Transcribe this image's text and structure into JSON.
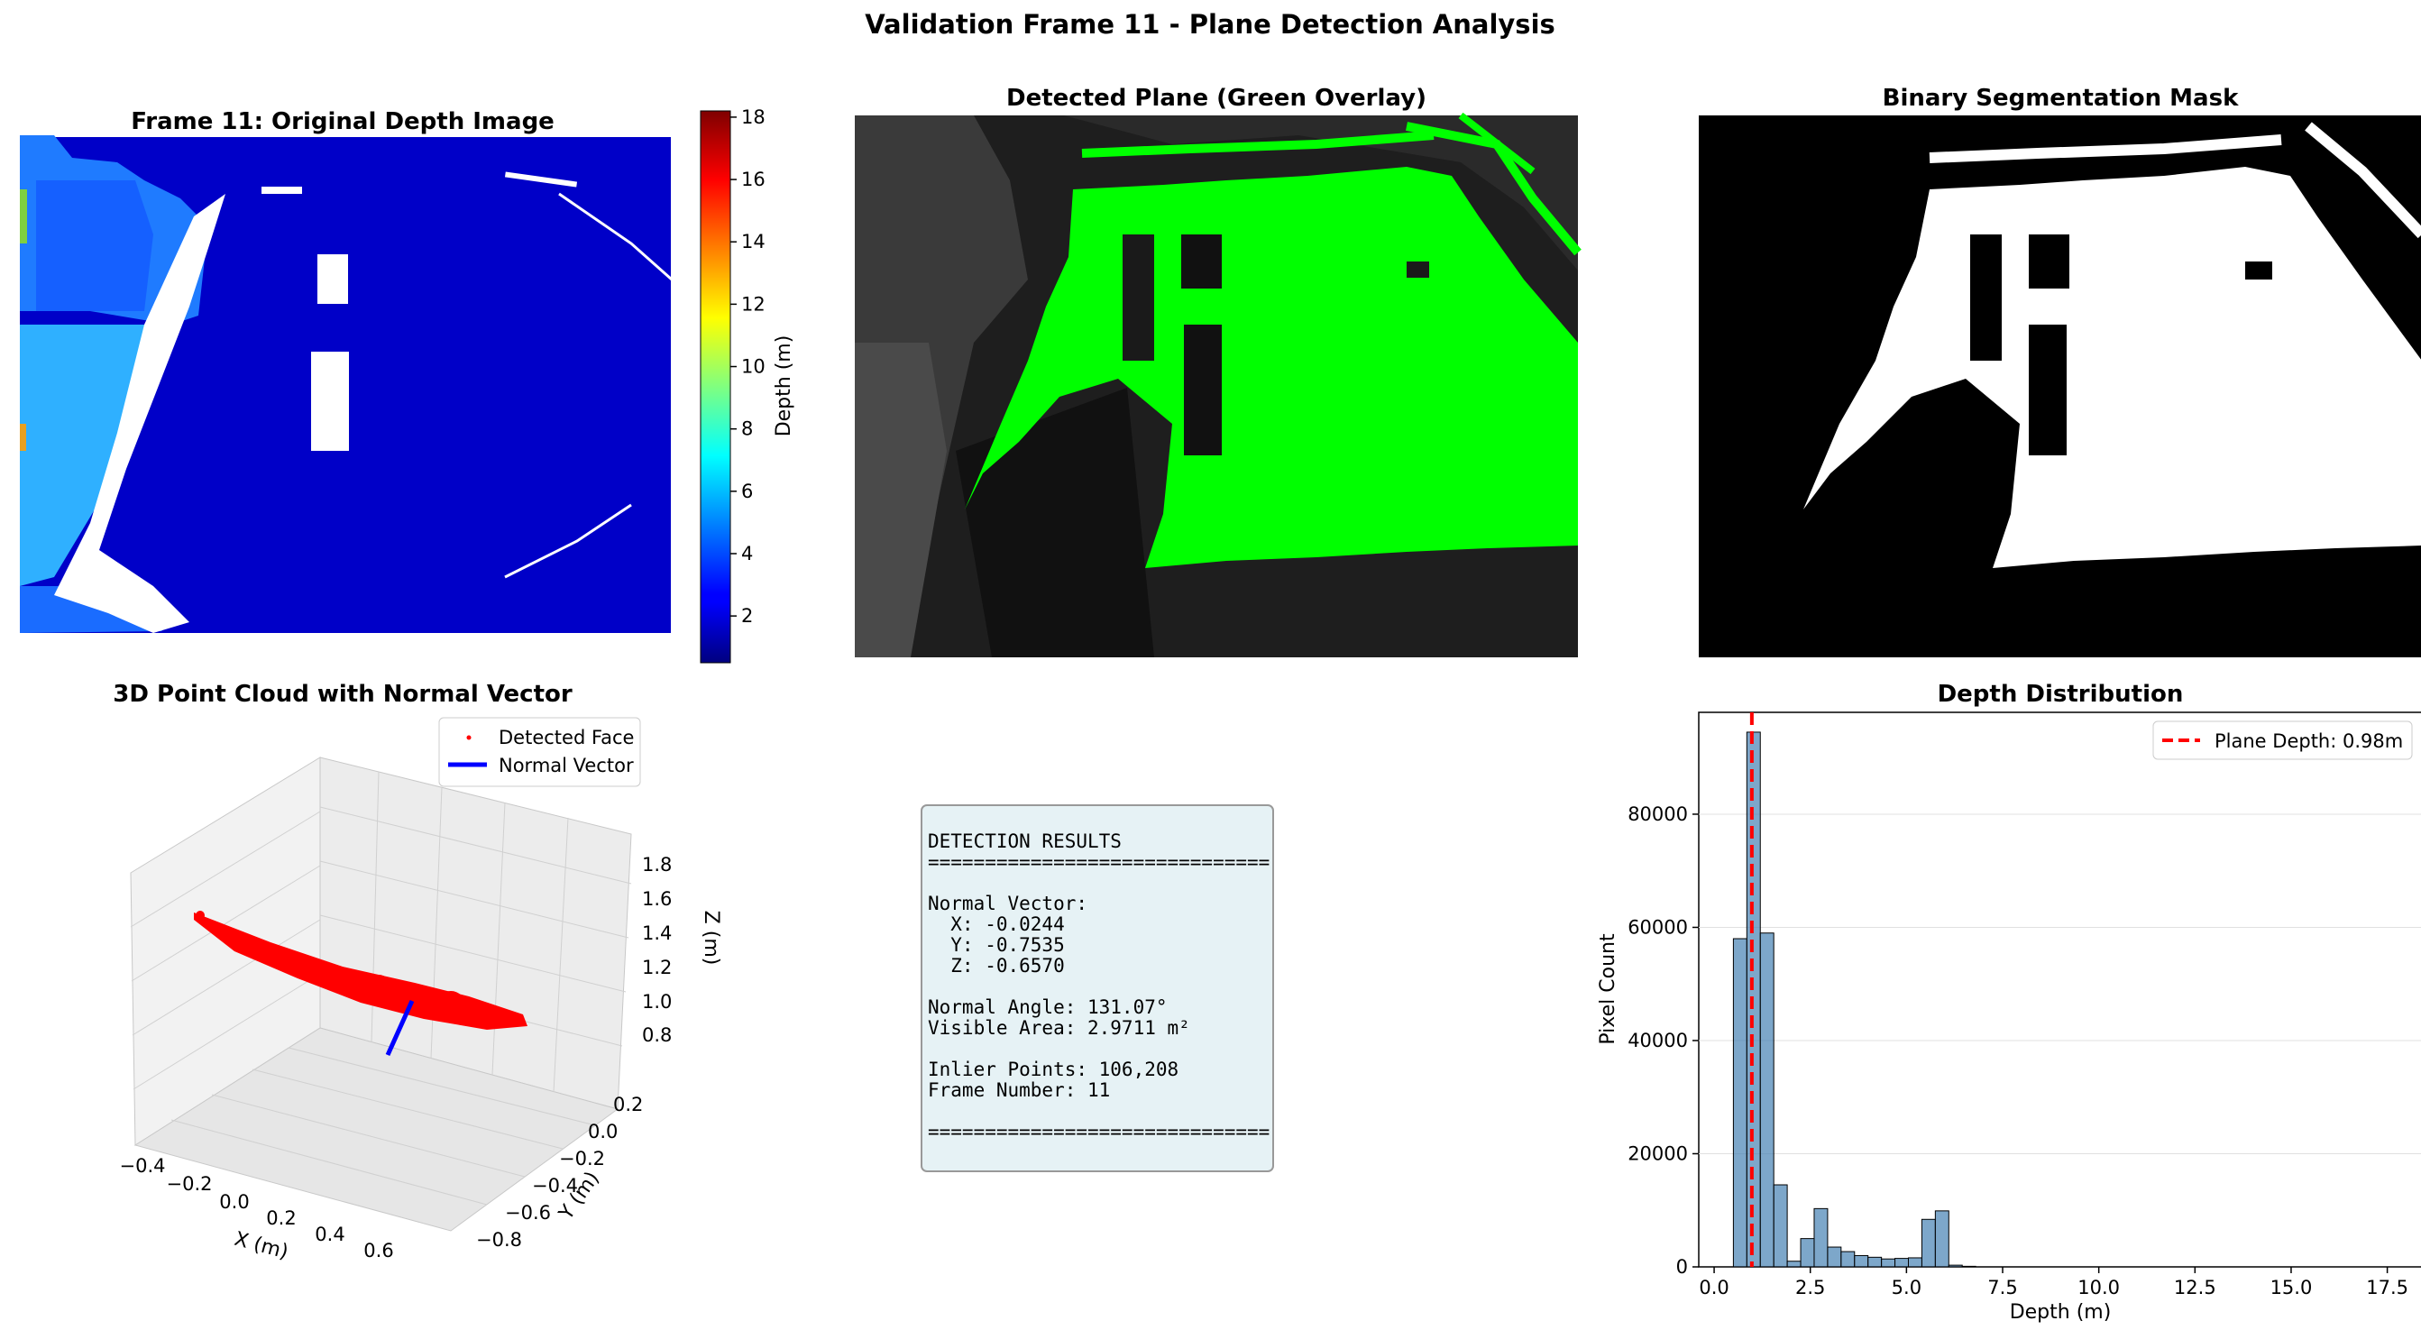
{
  "figure": {
    "suptitle": "Validation Frame 11 - Plane Detection Analysis"
  },
  "panels": {
    "depth_image": {
      "title": "Frame 11: Original Depth Image",
      "colorbar_label": "Depth (m)",
      "colorbar_ticks": [
        "2",
        "4",
        "6",
        "8",
        "10",
        "12",
        "14",
        "16",
        "18"
      ],
      "colormap": "jet",
      "range": [
        0.5,
        18.2
      ]
    },
    "overlay": {
      "title": "Detected Plane (Green Overlay)",
      "overlay_color": "#00ff00"
    },
    "mask": {
      "title": "Binary Segmentation Mask"
    },
    "point_cloud": {
      "title": "3D Point Cloud with Normal Vector",
      "legend": [
        "Detected Face",
        "Normal Vector"
      ],
      "xlabel": "X (m)",
      "ylabel": "Y (m)",
      "zlabel": "Z (m)",
      "x_ticks": [
        "−0.4",
        "−0.2",
        "0.0",
        "0.2",
        "0.4",
        "0.6"
      ],
      "y_ticks": [
        "0.2",
        "0.0",
        "−0.2",
        "−0.4",
        "−0.6",
        "−0.8"
      ],
      "z_ticks": [
        "1.8",
        "1.6",
        "1.4",
        "1.2",
        "1.0",
        "0.8"
      ],
      "point_color": "#ff0000",
      "normal_color": "#0000ff"
    },
    "results": {
      "lines": [
        "DETECTION RESULTS",
        "==============================",
        "",
        "Normal Vector:",
        "  X: -0.0244",
        "  Y: -0.7535",
        "  Z: -0.6570",
        "",
        "Normal Angle: 131.07°",
        "Visible Area: 2.9711 m²",
        "",
        "Inlier Points: 106,208",
        "Frame Number: 11",
        "",
        "=============================="
      ]
    }
  },
  "chart_data": [
    {
      "type": "bar",
      "title": "Depth Distribution",
      "xlabel": "Depth (m)",
      "ylabel": "Pixel Count",
      "xlim": [
        -0.4,
        18.4
      ],
      "ylim": [
        0,
        98000
      ],
      "x_ticks": [
        0,
        2.5,
        5,
        7.5,
        10,
        12.5,
        15,
        17.5
      ],
      "x_tick_labels": [
        "0.0",
        "2.5",
        "5.0",
        "7.5",
        "10.0",
        "12.5",
        "15.0",
        "17.5"
      ],
      "y_ticks": [
        0,
        20000,
        40000,
        60000,
        80000
      ],
      "y_tick_labels": [
        "0",
        "20000",
        "40000",
        "60000",
        "80000"
      ],
      "grid": "y",
      "bar_color": "#4682b4",
      "bin_width": 0.35,
      "bin_starts": [
        0.5,
        0.85,
        1.2,
        1.55,
        1.9,
        2.25,
        2.6,
        2.95,
        3.3,
        3.65,
        4.0,
        4.35,
        4.7,
        5.05,
        5.4,
        5.75,
        6.1,
        6.45
      ],
      "values": [
        58000,
        94500,
        59000,
        14500,
        1000,
        5000,
        10300,
        3500,
        2700,
        2000,
        1700,
        1400,
        1500,
        1600,
        8400,
        9900,
        300,
        100
      ],
      "vline": {
        "x": 0.98,
        "label": "Plane Depth: 0.98m",
        "color": "#ff0000"
      },
      "legend_placement": "top-right"
    }
  ]
}
